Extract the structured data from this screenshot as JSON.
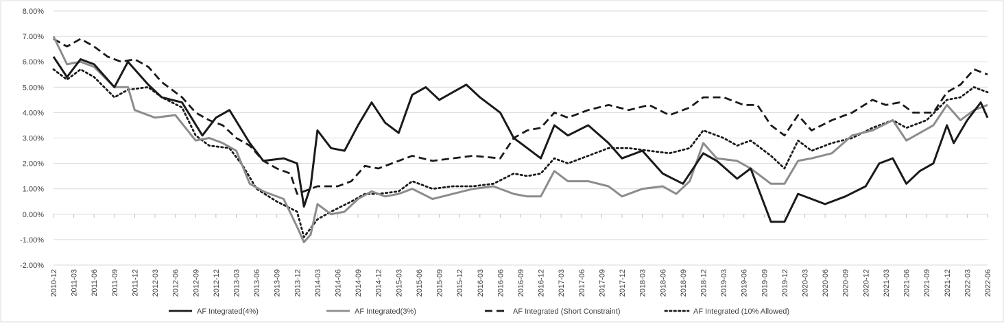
{
  "colors": {
    "s4": "#1a1a1a",
    "s3": "#8c8c8c",
    "short": "#1a1a1a",
    "allowed": "#1a1a1a",
    "grid": "#d9d9d9"
  },
  "chart_data": {
    "type": "line",
    "title": "",
    "xlabel": "",
    "ylabel": "",
    "ylim": [
      -0.02,
      0.08
    ],
    "grid": true,
    "legend_position": "bottom",
    "ytick_labels": [
      "8.00%",
      "7.00%",
      "6.00%",
      "5.00%",
      "4.00%",
      "3.00%",
      "2.00%",
      "1.00%",
      "0.00%",
      "-1.00%",
      "-2.00%"
    ],
    "ytick_values": [
      0.08,
      0.07,
      0.06,
      0.05,
      0.04,
      0.03,
      0.02,
      0.01,
      0.0,
      -0.01,
      -0.02
    ],
    "x_start": "2010-12",
    "x_end": "2022-06",
    "xtick_labels": [
      "2010-12",
      "2011-03",
      "2011-06",
      "2011-09",
      "2011-12",
      "2012-03",
      "2012-06",
      "2012-09",
      "2012-12",
      "2013-03",
      "2013-06",
      "2013-09",
      "2013-12",
      "2014-03",
      "2014-06",
      "2014-09",
      "2014-12",
      "2015-03",
      "2015-06",
      "2015-09",
      "2015-12",
      "2016-03",
      "2016-06",
      "2016-09",
      "2016-12",
      "2017-03",
      "2017-06",
      "2017-09",
      "2017-12",
      "2018-03",
      "2018-06",
      "2018-09",
      "2018-12",
      "2019-03",
      "2019-06",
      "2019-09",
      "2019-12",
      "2020-03",
      "2020-06",
      "2020-09",
      "2020-12",
      "2021-03",
      "2021-06",
      "2021-09",
      "2021-12",
      "2022-03",
      "2022-06"
    ],
    "series": [
      {
        "name": "AF Integrated(4%)",
        "style": "solid",
        "colorKey": "s4",
        "points": [
          [
            "2010-12",
            0.062
          ],
          [
            "2011-02",
            0.054
          ],
          [
            "2011-04",
            0.061
          ],
          [
            "2011-06",
            0.059
          ],
          [
            "2011-09",
            0.05
          ],
          [
            "2011-11",
            0.06
          ],
          [
            "2012-02",
            0.051
          ],
          [
            "2012-04",
            0.046
          ],
          [
            "2012-07",
            0.044
          ],
          [
            "2012-10",
            0.031
          ],
          [
            "2012-12",
            0.038
          ],
          [
            "2013-02",
            0.041
          ],
          [
            "2013-05",
            0.028
          ],
          [
            "2013-07",
            0.021
          ],
          [
            "2013-10",
            0.022
          ],
          [
            "2013-12",
            0.02
          ],
          [
            "2014-01",
            0.003
          ],
          [
            "2014-02",
            0.011
          ],
          [
            "2014-03",
            0.033
          ],
          [
            "2014-05",
            0.026
          ],
          [
            "2014-07",
            0.025
          ],
          [
            "2014-09",
            0.035
          ],
          [
            "2014-11",
            0.044
          ],
          [
            "2015-01",
            0.036
          ],
          [
            "2015-03",
            0.032
          ],
          [
            "2015-05",
            0.047
          ],
          [
            "2015-07",
            0.05
          ],
          [
            "2015-09",
            0.045
          ],
          [
            "2015-11",
            0.048
          ],
          [
            "2016-01",
            0.051
          ],
          [
            "2016-03",
            0.046
          ],
          [
            "2016-06",
            0.04
          ],
          [
            "2016-08",
            0.03
          ],
          [
            "2016-10",
            0.026
          ],
          [
            "2016-12",
            0.022
          ],
          [
            "2017-02",
            0.035
          ],
          [
            "2017-04",
            0.031
          ],
          [
            "2017-07",
            0.035
          ],
          [
            "2017-10",
            0.028
          ],
          [
            "2017-12",
            0.022
          ],
          [
            "2018-03",
            0.025
          ],
          [
            "2018-06",
            0.016
          ],
          [
            "2018-09",
            0.012
          ],
          [
            "2018-12",
            0.024
          ],
          [
            "2019-02",
            0.021
          ],
          [
            "2019-05",
            0.014
          ],
          [
            "2019-07",
            0.018
          ],
          [
            "2019-10",
            -0.003
          ],
          [
            "2019-12",
            -0.003
          ],
          [
            "2020-02",
            0.008
          ],
          [
            "2020-04",
            0.006
          ],
          [
            "2020-06",
            0.004
          ],
          [
            "2020-09",
            0.007
          ],
          [
            "2020-12",
            0.011
          ],
          [
            "2021-02",
            0.02
          ],
          [
            "2021-04",
            0.022
          ],
          [
            "2021-06",
            0.012
          ],
          [
            "2021-08",
            0.017
          ],
          [
            "2021-10",
            0.02
          ],
          [
            "2021-12",
            0.035
          ],
          [
            "2022-01",
            0.028
          ],
          [
            "2022-03",
            0.037
          ],
          [
            "2022-05",
            0.044
          ],
          [
            "2022-06",
            0.038
          ]
        ]
      },
      {
        "name": "AF Integrated(3%)",
        "style": "solid",
        "colorKey": "s3",
        "points": [
          [
            "2010-12",
            0.07
          ],
          [
            "2011-02",
            0.059
          ],
          [
            "2011-04",
            0.06
          ],
          [
            "2011-06",
            0.058
          ],
          [
            "2011-09",
            0.05
          ],
          [
            "2011-11",
            0.05
          ],
          [
            "2011-12",
            0.041
          ],
          [
            "2012-03",
            0.038
          ],
          [
            "2012-06",
            0.039
          ],
          [
            "2012-09",
            0.029
          ],
          [
            "2012-11",
            0.03
          ],
          [
            "2013-01",
            0.028
          ],
          [
            "2013-03",
            0.025
          ],
          [
            "2013-05",
            0.012
          ],
          [
            "2013-07",
            0.009
          ],
          [
            "2013-10",
            0.006
          ],
          [
            "2013-12",
            -0.005
          ],
          [
            "2014-01",
            -0.011
          ],
          [
            "2014-02",
            -0.008
          ],
          [
            "2014-03",
            0.004
          ],
          [
            "2014-05",
            0.0
          ],
          [
            "2014-07",
            0.001
          ],
          [
            "2014-09",
            0.006
          ],
          [
            "2014-11",
            0.009
          ],
          [
            "2015-01",
            0.007
          ],
          [
            "2015-03",
            0.008
          ],
          [
            "2015-05",
            0.01
          ],
          [
            "2015-08",
            0.006
          ],
          [
            "2015-11",
            0.008
          ],
          [
            "2016-02",
            0.01
          ],
          [
            "2016-05",
            0.011
          ],
          [
            "2016-08",
            0.008
          ],
          [
            "2016-10",
            0.007
          ],
          [
            "2016-12",
            0.007
          ],
          [
            "2017-02",
            0.017
          ],
          [
            "2017-04",
            0.013
          ],
          [
            "2017-07",
            0.013
          ],
          [
            "2017-10",
            0.011
          ],
          [
            "2017-12",
            0.007
          ],
          [
            "2018-03",
            0.01
          ],
          [
            "2018-06",
            0.011
          ],
          [
            "2018-08",
            0.008
          ],
          [
            "2018-10",
            0.013
          ],
          [
            "2018-12",
            0.028
          ],
          [
            "2019-02",
            0.022
          ],
          [
            "2019-05",
            0.021
          ],
          [
            "2019-07",
            0.018
          ],
          [
            "2019-10",
            0.012
          ],
          [
            "2019-12",
            0.012
          ],
          [
            "2020-02",
            0.021
          ],
          [
            "2020-04",
            0.022
          ],
          [
            "2020-07",
            0.024
          ],
          [
            "2020-10",
            0.031
          ],
          [
            "2021-01",
            0.033
          ],
          [
            "2021-04",
            0.037
          ],
          [
            "2021-06",
            0.029
          ],
          [
            "2021-08",
            0.032
          ],
          [
            "2021-10",
            0.035
          ],
          [
            "2021-12",
            0.043
          ],
          [
            "2022-02",
            0.037
          ],
          [
            "2022-04",
            0.041
          ],
          [
            "2022-06",
            0.043
          ]
        ]
      },
      {
        "name": "AF Integrated (Short Constraint)",
        "style": "dashed",
        "colorKey": "short",
        "points": [
          [
            "2010-12",
            0.069
          ],
          [
            "2011-02",
            0.066
          ],
          [
            "2011-04",
            0.069
          ],
          [
            "2011-06",
            0.066
          ],
          [
            "2011-08",
            0.062
          ],
          [
            "2011-10",
            0.06
          ],
          [
            "2011-12",
            0.061
          ],
          [
            "2012-02",
            0.058
          ],
          [
            "2012-04",
            0.052
          ],
          [
            "2012-07",
            0.046
          ],
          [
            "2012-09",
            0.04
          ],
          [
            "2012-11",
            0.037
          ],
          [
            "2013-01",
            0.035
          ],
          [
            "2013-03",
            0.03
          ],
          [
            "2013-05",
            0.027
          ],
          [
            "2013-07",
            0.021
          ],
          [
            "2013-09",
            0.018
          ],
          [
            "2013-11",
            0.016
          ],
          [
            "2013-12",
            0.008
          ],
          [
            "2014-01",
            0.009
          ],
          [
            "2014-03",
            0.011
          ],
          [
            "2014-06",
            0.011
          ],
          [
            "2014-08",
            0.013
          ],
          [
            "2014-10",
            0.019
          ],
          [
            "2014-12",
            0.018
          ],
          [
            "2015-03",
            0.021
          ],
          [
            "2015-05",
            0.023
          ],
          [
            "2015-08",
            0.021
          ],
          [
            "2015-11",
            0.022
          ],
          [
            "2016-02",
            0.023
          ],
          [
            "2016-06",
            0.022
          ],
          [
            "2016-08",
            0.03
          ],
          [
            "2016-10",
            0.033
          ],
          [
            "2016-12",
            0.034
          ],
          [
            "2017-02",
            0.04
          ],
          [
            "2017-04",
            0.038
          ],
          [
            "2017-07",
            0.041
          ],
          [
            "2017-10",
            0.043
          ],
          [
            "2018-01",
            0.041
          ],
          [
            "2018-04",
            0.043
          ],
          [
            "2018-07",
            0.039
          ],
          [
            "2018-10",
            0.042
          ],
          [
            "2018-12",
            0.046
          ],
          [
            "2019-03",
            0.046
          ],
          [
            "2019-06",
            0.043
          ],
          [
            "2019-08",
            0.043
          ],
          [
            "2019-10",
            0.035
          ],
          [
            "2019-12",
            0.031
          ],
          [
            "2020-02",
            0.039
          ],
          [
            "2020-04",
            0.033
          ],
          [
            "2020-07",
            0.037
          ],
          [
            "2020-10",
            0.04
          ],
          [
            "2021-01",
            0.045
          ],
          [
            "2021-03",
            0.043
          ],
          [
            "2021-05",
            0.044
          ],
          [
            "2021-07",
            0.04
          ],
          [
            "2021-10",
            0.04
          ],
          [
            "2021-12",
            0.048
          ],
          [
            "2022-02",
            0.051
          ],
          [
            "2022-04",
            0.057
          ],
          [
            "2022-06",
            0.055
          ]
        ]
      },
      {
        "name": "AF Integrated (10% Allowed)",
        "style": "dotted",
        "colorKey": "allowed",
        "points": [
          [
            "2010-12",
            0.057
          ],
          [
            "2011-02",
            0.053
          ],
          [
            "2011-04",
            0.057
          ],
          [
            "2011-06",
            0.054
          ],
          [
            "2011-09",
            0.046
          ],
          [
            "2011-11",
            0.049
          ],
          [
            "2012-02",
            0.05
          ],
          [
            "2012-04",
            0.046
          ],
          [
            "2012-07",
            0.042
          ],
          [
            "2012-09",
            0.031
          ],
          [
            "2012-11",
            0.027
          ],
          [
            "2013-02",
            0.026
          ],
          [
            "2013-04",
            0.019
          ],
          [
            "2013-06",
            0.01
          ],
          [
            "2013-09",
            0.005
          ],
          [
            "2013-12",
            0.001
          ],
          [
            "2014-01",
            -0.009
          ],
          [
            "2014-03",
            -0.002
          ],
          [
            "2014-05",
            0.001
          ],
          [
            "2014-08",
            0.005
          ],
          [
            "2014-10",
            0.008
          ],
          [
            "2014-12",
            0.008
          ],
          [
            "2015-03",
            0.009
          ],
          [
            "2015-05",
            0.013
          ],
          [
            "2015-08",
            0.01
          ],
          [
            "2015-11",
            0.011
          ],
          [
            "2016-02",
            0.011
          ],
          [
            "2016-05",
            0.012
          ],
          [
            "2016-08",
            0.016
          ],
          [
            "2016-10",
            0.015
          ],
          [
            "2016-12",
            0.016
          ],
          [
            "2017-02",
            0.022
          ],
          [
            "2017-04",
            0.02
          ],
          [
            "2017-07",
            0.023
          ],
          [
            "2017-10",
            0.026
          ],
          [
            "2018-01",
            0.026
          ],
          [
            "2018-04",
            0.025
          ],
          [
            "2018-07",
            0.024
          ],
          [
            "2018-10",
            0.026
          ],
          [
            "2018-12",
            0.033
          ],
          [
            "2019-03",
            0.03
          ],
          [
            "2019-05",
            0.027
          ],
          [
            "2019-07",
            0.029
          ],
          [
            "2019-10",
            0.023
          ],
          [
            "2019-12",
            0.018
          ],
          [
            "2020-02",
            0.029
          ],
          [
            "2020-04",
            0.025
          ],
          [
            "2020-07",
            0.028
          ],
          [
            "2020-10",
            0.03
          ],
          [
            "2021-01",
            0.034
          ],
          [
            "2021-04",
            0.037
          ],
          [
            "2021-06",
            0.034
          ],
          [
            "2021-09",
            0.037
          ],
          [
            "2021-12",
            0.045
          ],
          [
            "2022-02",
            0.046
          ],
          [
            "2022-04",
            0.05
          ],
          [
            "2022-06",
            0.048
          ]
        ]
      }
    ]
  }
}
